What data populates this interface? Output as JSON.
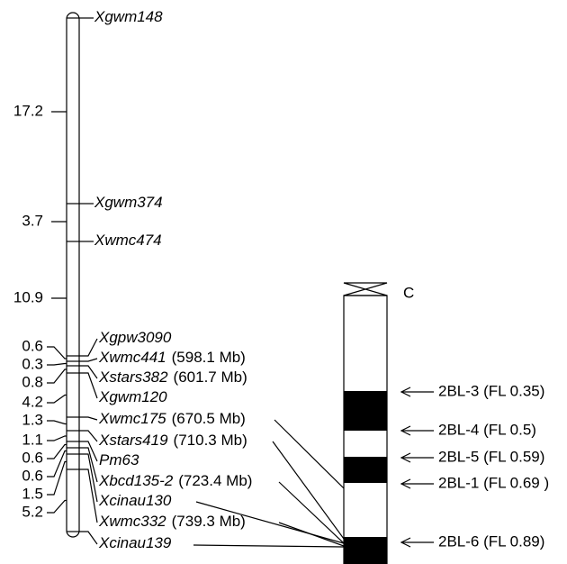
{
  "linkage_map": {
    "distances": [
      17.2,
      3.7,
      10.9,
      0.6,
      0.3,
      0.8,
      4.2,
      1.3,
      1.1,
      0.6,
      0.6,
      1.5,
      5.2
    ],
    "markers": [
      {
        "name": "Xgwm148"
      },
      {
        "name": "Xgwm374"
      },
      {
        "name": "Xwmc474"
      },
      {
        "name": "Xgpw3090"
      },
      {
        "name": "Xwmc441",
        "position": "(598.1 Mb)"
      },
      {
        "name": "Xstars382",
        "position": "(601.7 Mb)"
      },
      {
        "name": "Xgwm120"
      },
      {
        "name": "Xwmc175",
        "position": "(670.5 Mb)"
      },
      {
        "name": "Xstars419",
        "position": "(710.3 Mb)"
      },
      {
        "name": "Pm63"
      },
      {
        "name": "Xbcd135-2",
        "position": "(723.4 Mb)"
      },
      {
        "name": "Xcinau130"
      },
      {
        "name": "Xwmc332",
        "position": "(739.3 Mb)"
      },
      {
        "name": "Xcinau139"
      }
    ]
  },
  "chromosome": {
    "label": "C",
    "bins": [
      "2BL-3 (FL 0.35)",
      "2BL-4 (FL 0.5)",
      "2BL-5 (FL 0.59)",
      "2BL-1 (FL 0.69 )",
      "2BL-6 (FL 0.89)"
    ]
  }
}
